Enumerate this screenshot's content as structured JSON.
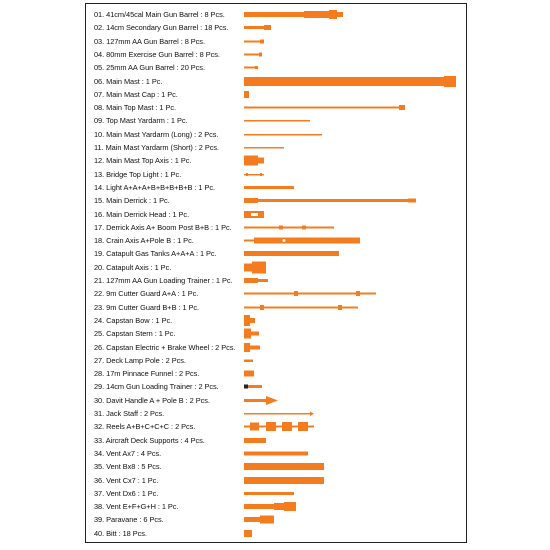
{
  "sheet": {
    "accent_color": "#f47c1f",
    "parts": [
      {
        "label": "01. 41cm/45cal Main Gun Barrel : 8 Pcs."
      },
      {
        "label": "02. 14cm Secondary Gun Barrel : 18 Pcs."
      },
      {
        "label": "03. 127mm AA Gun Barrel : 8 Pcs."
      },
      {
        "label": "04. 80mm Exercise Gun Barrel : 8 Pcs."
      },
      {
        "label": "05. 25mm AA Gun Barrel : 20 Pcs."
      },
      {
        "label": "06. Main Mast : 1 Pc."
      },
      {
        "label": "07. Main Mast Cap : 1 Pc."
      },
      {
        "label": "08. Main Top Mast : 1 Pc."
      },
      {
        "label": "09. Top Mast Yardarm : 1 Pc."
      },
      {
        "label": "10. Main Mast Yardarm (Long) : 2 Pcs."
      },
      {
        "label": "11. Main Mast Yardarm (Short) : 2 Pcs."
      },
      {
        "label": "12. Main Mast Top Axis : 1 Pc."
      },
      {
        "label": "13. Bridge Top Light : 1 Pc."
      },
      {
        "label": "14. Light A+A+A+B+B+B+B+B : 1 Pc."
      },
      {
        "label": "15. Main Derrick : 1 Pc."
      },
      {
        "label": "16. Main Derrick Head : 1 Pc."
      },
      {
        "label": "17. Derrick Axis A+ Boom Post B+B : 1 Pc."
      },
      {
        "label": "18. Crain Axis A+Pole B : 1 Pc."
      },
      {
        "label": "19. Catapult Gas Tanks A+A+A : 1 Pc."
      },
      {
        "label": "20. Catapult Axis : 1 Pc."
      },
      {
        "label": "21. 127mm AA Gun Loading Trainer : 1 Pc."
      },
      {
        "label": "22. 9m Cutter Guard A+A : 1 Pc."
      },
      {
        "label": "23. 9m Cutter Guard B+B : 1 Pc."
      },
      {
        "label": "24. Capstan Bow : 1 Pc."
      },
      {
        "label": "25. Capstan Stern : 1 Pc."
      },
      {
        "label": "26. Capstan Electric + Brake Wheel : 2 Pcs."
      },
      {
        "label": "27. Deck Lamp Pole : 2 Pcs."
      },
      {
        "label": "28. 17m Pinnace Funnel : 2 Pcs."
      },
      {
        "label": "29. 14cm Gun Loading Trainer  : 2 Pcs."
      },
      {
        "label": "30. Davit Handle A + Pole B : 2 Pcs."
      },
      {
        "label": "31. Jack Staff : 2 Pcs."
      },
      {
        "label": "32. Reels A+B+C+C+C : 2 Pcs."
      },
      {
        "label": "33. Aircraft Deck Supports : 4 Pcs."
      },
      {
        "label": "34. Vent Ax7 : 4 Pcs."
      },
      {
        "label": "35. Vent Bx8 : 5 Pcs."
      },
      {
        "label": "36. Vent Cx7 : 1 Pc."
      },
      {
        "label": "37. Vent Dx6 : 1 Pc."
      },
      {
        "label": "38. Vent E+F+G+H : 1 Pc."
      },
      {
        "label": "39. Paravane : 6 Pcs."
      },
      {
        "label": "40. Bitt : 18 Pcs."
      }
    ]
  }
}
